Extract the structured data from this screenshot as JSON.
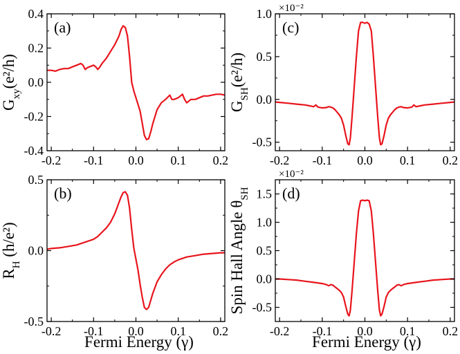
{
  "figure": {
    "xlabel_bottom": "Fermi Energy (γ)",
    "line_color": "#e8141c"
  },
  "chart_data": [
    {
      "panel": "a",
      "panel_label": "(a)",
      "type": "line",
      "ylabel": "G_xy(e²/h)",
      "ylabel_main": "G",
      "ylabel_sub": "xy",
      "ylabel_unit": "(e²/h)",
      "multiplier": "",
      "xlim": [
        -0.21,
        0.21
      ],
      "ylim": [
        -0.4,
        0.4
      ],
      "xticks": [
        -0.2,
        -0.1,
        0.0,
        0.1,
        0.2
      ],
      "xticklabels": [
        "-0.2",
        "-0.1",
        "0.0",
        "0.1",
        "0.2"
      ],
      "yticks": [
        -0.4,
        -0.2,
        0.0,
        0.2,
        0.4
      ],
      "yticklabels": [
        "-0.4",
        "-0.2",
        "0.0",
        "0.2",
        "0.4"
      ],
      "x": [
        -0.21,
        -0.2,
        -0.19,
        -0.18,
        -0.17,
        -0.16,
        -0.15,
        -0.14,
        -0.13,
        -0.125,
        -0.12,
        -0.115,
        -0.11,
        -0.1,
        -0.095,
        -0.09,
        -0.085,
        -0.08,
        -0.07,
        -0.06,
        -0.05,
        -0.04,
        -0.035,
        -0.03,
        -0.025,
        -0.02,
        -0.015,
        -0.01,
        -0.005,
        0.0,
        0.005,
        0.01,
        0.015,
        0.02,
        0.025,
        0.03,
        0.035,
        0.04,
        0.05,
        0.06,
        0.07,
        0.08,
        0.085,
        0.09,
        0.1,
        0.11,
        0.115,
        0.12,
        0.13,
        0.14,
        0.15,
        0.16,
        0.17,
        0.18,
        0.19,
        0.2,
        0.21
      ],
      "y": [
        0.07,
        0.07,
        0.065,
        0.075,
        0.08,
        0.08,
        0.09,
        0.1,
        0.11,
        0.1,
        0.075,
        0.085,
        0.09,
        0.1,
        0.09,
        0.075,
        0.09,
        0.11,
        0.14,
        0.18,
        0.22,
        0.27,
        0.31,
        0.33,
        0.32,
        0.27,
        0.15,
        0.0,
        -0.05,
        -0.09,
        -0.13,
        -0.17,
        -0.24,
        -0.31,
        -0.335,
        -0.33,
        -0.29,
        -0.24,
        -0.16,
        -0.12,
        -0.1,
        -0.075,
        -0.1,
        -0.1,
        -0.09,
        -0.07,
        -0.1,
        -0.12,
        -0.1,
        -0.1,
        -0.09,
        -0.08,
        -0.08,
        -0.075,
        -0.07,
        -0.07,
        -0.075
      ]
    },
    {
      "panel": "b",
      "panel_label": "(b)",
      "type": "line",
      "ylabel": "R_H (h/e²)",
      "ylabel_main": "R",
      "ylabel_sub": "H",
      "ylabel_unit": " (h/e²)",
      "multiplier": "",
      "xlim": [
        -0.21,
        0.21
      ],
      "ylim": [
        -0.5,
        0.5
      ],
      "xticks": [
        -0.2,
        -0.1,
        0.0,
        0.1,
        0.2
      ],
      "xticklabels": [
        "-0.2",
        "-0.1",
        "0.0",
        "0.1",
        "0.2"
      ],
      "yticks": [
        -0.5,
        0.0,
        0.5
      ],
      "yticklabels": [
        "-0.5",
        "0.0",
        "0.5"
      ],
      "x": [
        -0.21,
        -0.2,
        -0.18,
        -0.16,
        -0.14,
        -0.12,
        -0.1,
        -0.09,
        -0.08,
        -0.07,
        -0.06,
        -0.05,
        -0.045,
        -0.04,
        -0.035,
        -0.03,
        -0.025,
        -0.02,
        -0.015,
        -0.01,
        -0.005,
        0.0,
        0.005,
        0.01,
        0.015,
        0.02,
        0.025,
        0.03,
        0.035,
        0.04,
        0.05,
        0.06,
        0.07,
        0.08,
        0.09,
        0.1,
        0.12,
        0.14,
        0.16,
        0.18,
        0.2,
        0.21
      ],
      "y": [
        0.01,
        0.015,
        0.02,
        0.03,
        0.04,
        0.06,
        0.08,
        0.1,
        0.13,
        0.16,
        0.2,
        0.26,
        0.3,
        0.34,
        0.38,
        0.41,
        0.415,
        0.39,
        0.3,
        0.15,
        0.02,
        -0.06,
        -0.14,
        -0.24,
        -0.33,
        -0.4,
        -0.415,
        -0.4,
        -0.35,
        -0.3,
        -0.22,
        -0.17,
        -0.13,
        -0.1,
        -0.08,
        -0.065,
        -0.045,
        -0.035,
        -0.025,
        -0.02,
        -0.015,
        -0.015
      ]
    },
    {
      "panel": "c",
      "panel_label": "(c)",
      "type": "line",
      "ylabel": "G_SH(e²/h)",
      "ylabel_main": "G",
      "ylabel_sub": "SH",
      "ylabel_unit": "(e²/h)",
      "multiplier": "×10⁻²",
      "xlim": [
        -0.21,
        0.21
      ],
      "ylim": [
        -0.6,
        1.0
      ],
      "xticks": [
        -0.2,
        -0.1,
        0.0,
        0.1,
        0.2
      ],
      "xticklabels": [
        "-0.2",
        "-0.1",
        "0.0",
        "0.1",
        "0.2"
      ],
      "yticks": [
        -0.5,
        0.0,
        0.5,
        1.0
      ],
      "yticklabels": [
        "-0.5",
        "0.0",
        "0.5",
        "1.0"
      ],
      "x": [
        -0.21,
        -0.2,
        -0.18,
        -0.16,
        -0.14,
        -0.13,
        -0.12,
        -0.115,
        -0.11,
        -0.1,
        -0.09,
        -0.085,
        -0.08,
        -0.075,
        -0.07,
        -0.065,
        -0.06,
        -0.055,
        -0.05,
        -0.045,
        -0.04,
        -0.037,
        -0.034,
        -0.03,
        -0.025,
        -0.02,
        -0.015,
        -0.01,
        -0.005,
        0.0,
        0.005,
        0.01,
        0.015,
        0.02,
        0.025,
        0.03,
        0.034,
        0.037,
        0.04,
        0.045,
        0.05,
        0.055,
        0.06,
        0.065,
        0.07,
        0.075,
        0.08,
        0.085,
        0.09,
        0.1,
        0.11,
        0.115,
        0.12,
        0.13,
        0.14,
        0.16,
        0.18,
        0.2,
        0.21
      ],
      "y": [
        -0.03,
        -0.035,
        -0.045,
        -0.055,
        -0.065,
        -0.075,
        -0.085,
        -0.065,
        -0.09,
        -0.1,
        -0.095,
        -0.085,
        -0.09,
        -0.1,
        -0.12,
        -0.15,
        -0.18,
        -0.22,
        -0.3,
        -0.42,
        -0.52,
        -0.53,
        -0.45,
        -0.2,
        0.15,
        0.5,
        0.8,
        0.9,
        0.9,
        0.89,
        0.9,
        0.88,
        0.8,
        0.5,
        0.15,
        -0.2,
        -0.45,
        -0.53,
        -0.52,
        -0.42,
        -0.3,
        -0.22,
        -0.18,
        -0.15,
        -0.12,
        -0.1,
        -0.09,
        -0.085,
        -0.095,
        -0.1,
        -0.09,
        -0.065,
        -0.085,
        -0.075,
        -0.065,
        -0.055,
        -0.045,
        -0.035,
        -0.03
      ]
    },
    {
      "panel": "d",
      "panel_label": "(d)",
      "type": "line",
      "ylabel": "Spin Hall Angle θ_SH",
      "ylabel_main": "Spin Hall Angle θ",
      "ylabel_sub": "SH",
      "ylabel_unit": "",
      "multiplier": "×10⁻²",
      "xlim": [
        -0.21,
        0.21
      ],
      "ylim": [
        -0.75,
        1.75
      ],
      "xticks": [
        -0.2,
        -0.1,
        0.0,
        0.1,
        0.2
      ],
      "xticklabels": [
        "-0.2",
        "-0.1",
        "0.0",
        "0.1",
        "0.2"
      ],
      "yticks": [
        -0.5,
        0.0,
        0.5,
        1.0,
        1.5
      ],
      "yticklabels": [
        "-0.5",
        "0.0",
        "0.5",
        "1.0",
        "1.5"
      ],
      "x": [
        -0.21,
        -0.2,
        -0.18,
        -0.16,
        -0.14,
        -0.12,
        -0.1,
        -0.09,
        -0.085,
        -0.08,
        -0.075,
        -0.07,
        -0.065,
        -0.06,
        -0.055,
        -0.05,
        -0.045,
        -0.04,
        -0.037,
        -0.034,
        -0.03,
        -0.025,
        -0.02,
        -0.015,
        -0.01,
        -0.005,
        0.0,
        0.005,
        0.01,
        0.015,
        0.02,
        0.025,
        0.03,
        0.034,
        0.037,
        0.04,
        0.045,
        0.05,
        0.055,
        0.06,
        0.065,
        0.07,
        0.075,
        0.08,
        0.085,
        0.09,
        0.1,
        0.12,
        0.14,
        0.16,
        0.18,
        0.2,
        0.21
      ],
      "y": [
        0.0,
        0.0,
        -0.01,
        -0.02,
        -0.04,
        -0.06,
        -0.08,
        -0.1,
        -0.12,
        -0.1,
        -0.11,
        -0.14,
        -0.17,
        -0.2,
        -0.24,
        -0.32,
        -0.48,
        -0.62,
        -0.65,
        -0.55,
        -0.2,
        0.3,
        0.8,
        1.2,
        1.38,
        1.39,
        1.38,
        1.39,
        1.38,
        1.2,
        0.8,
        0.3,
        -0.2,
        -0.55,
        -0.65,
        -0.62,
        -0.48,
        -0.32,
        -0.24,
        -0.2,
        -0.17,
        -0.14,
        -0.11,
        -0.1,
        -0.12,
        -0.1,
        -0.08,
        -0.06,
        -0.04,
        -0.02,
        -0.01,
        0.0,
        0.0
      ]
    }
  ]
}
